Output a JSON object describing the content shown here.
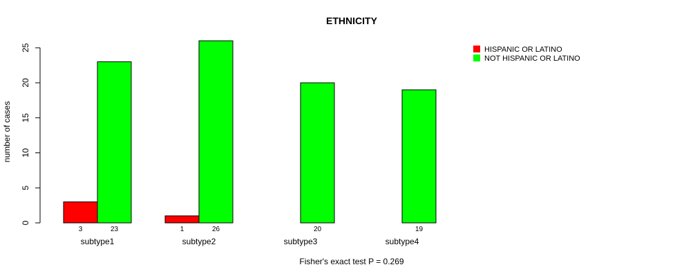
{
  "chart_data": {
    "type": "bar",
    "title": "ETHNICITY",
    "ylabel": "number of cases",
    "xlabel": "",
    "footnote": "Fisher's exact test P = 0.269",
    "categories": [
      "subtype1",
      "subtype2",
      "subtype3",
      "subtype4"
    ],
    "series": [
      {
        "name": "HISPANIC OR LATINO",
        "color": "#ff0000",
        "values": [
          3,
          1,
          0,
          0
        ]
      },
      {
        "name": "NOT HISPANIC OR LATINO",
        "color": "#00ff00",
        "values": [
          23,
          26,
          20,
          19
        ]
      }
    ],
    "value_labels": [
      [
        "3",
        "23"
      ],
      [
        "1",
        "26"
      ],
      [
        "",
        "20"
      ],
      [
        "",
        "19"
      ]
    ],
    "yticks": [
      0,
      5,
      10,
      15,
      20,
      25
    ],
    "ylim": [
      0,
      26
    ],
    "legend_position": "top-right",
    "grid": false
  }
}
